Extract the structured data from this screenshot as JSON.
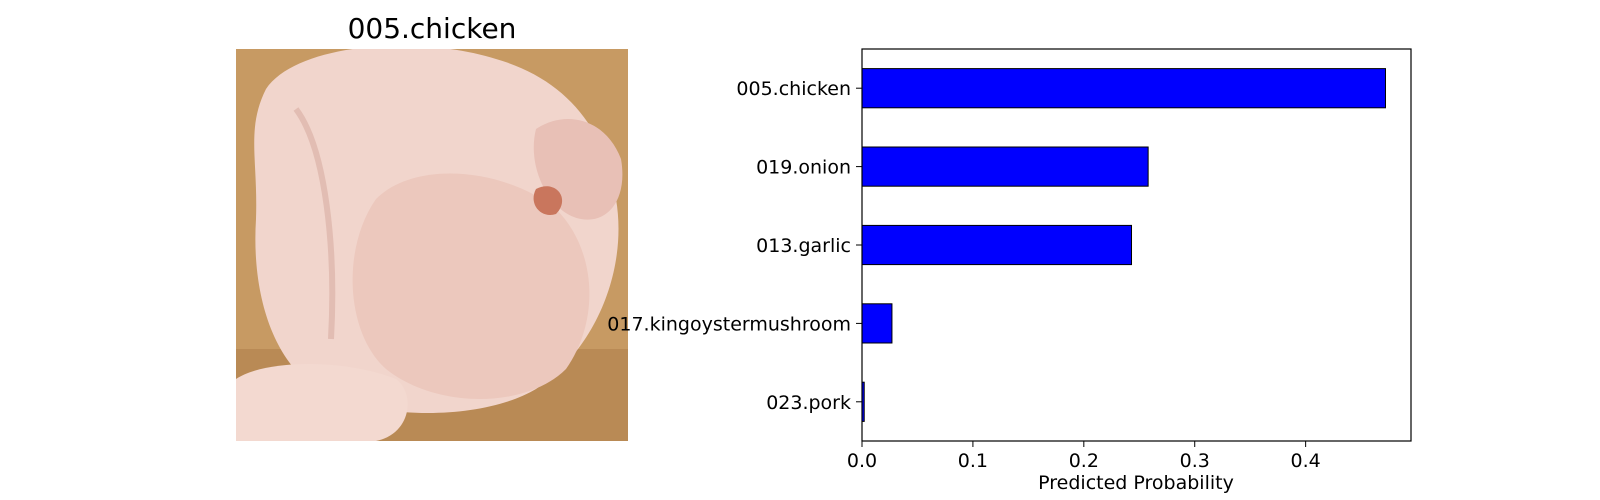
{
  "image_panel": {
    "title": "005.chicken",
    "image_icon": "raw-whole-chicken-photo",
    "colors": {
      "board": "#c79a63",
      "skin": "#f1d5cc",
      "shadow": "#d9aea2"
    }
  },
  "chart_data": {
    "type": "bar",
    "orientation": "horizontal",
    "title": "",
    "xlabel": "Predicted Probability",
    "ylabel": "",
    "categories": [
      "005.chicken",
      "019.onion",
      "013.garlic",
      "017.kingoystermushroom",
      "023.pork"
    ],
    "values": [
      0.472,
      0.258,
      0.243,
      0.027,
      0.002
    ],
    "xlim": [
      0.0,
      0.495
    ],
    "xticks": [
      "0.0",
      "0.1",
      "0.2",
      "0.3",
      "0.4"
    ],
    "grid": false,
    "legend": "none",
    "bar_color": "#0000ff",
    "edge_color": "#000000"
  }
}
